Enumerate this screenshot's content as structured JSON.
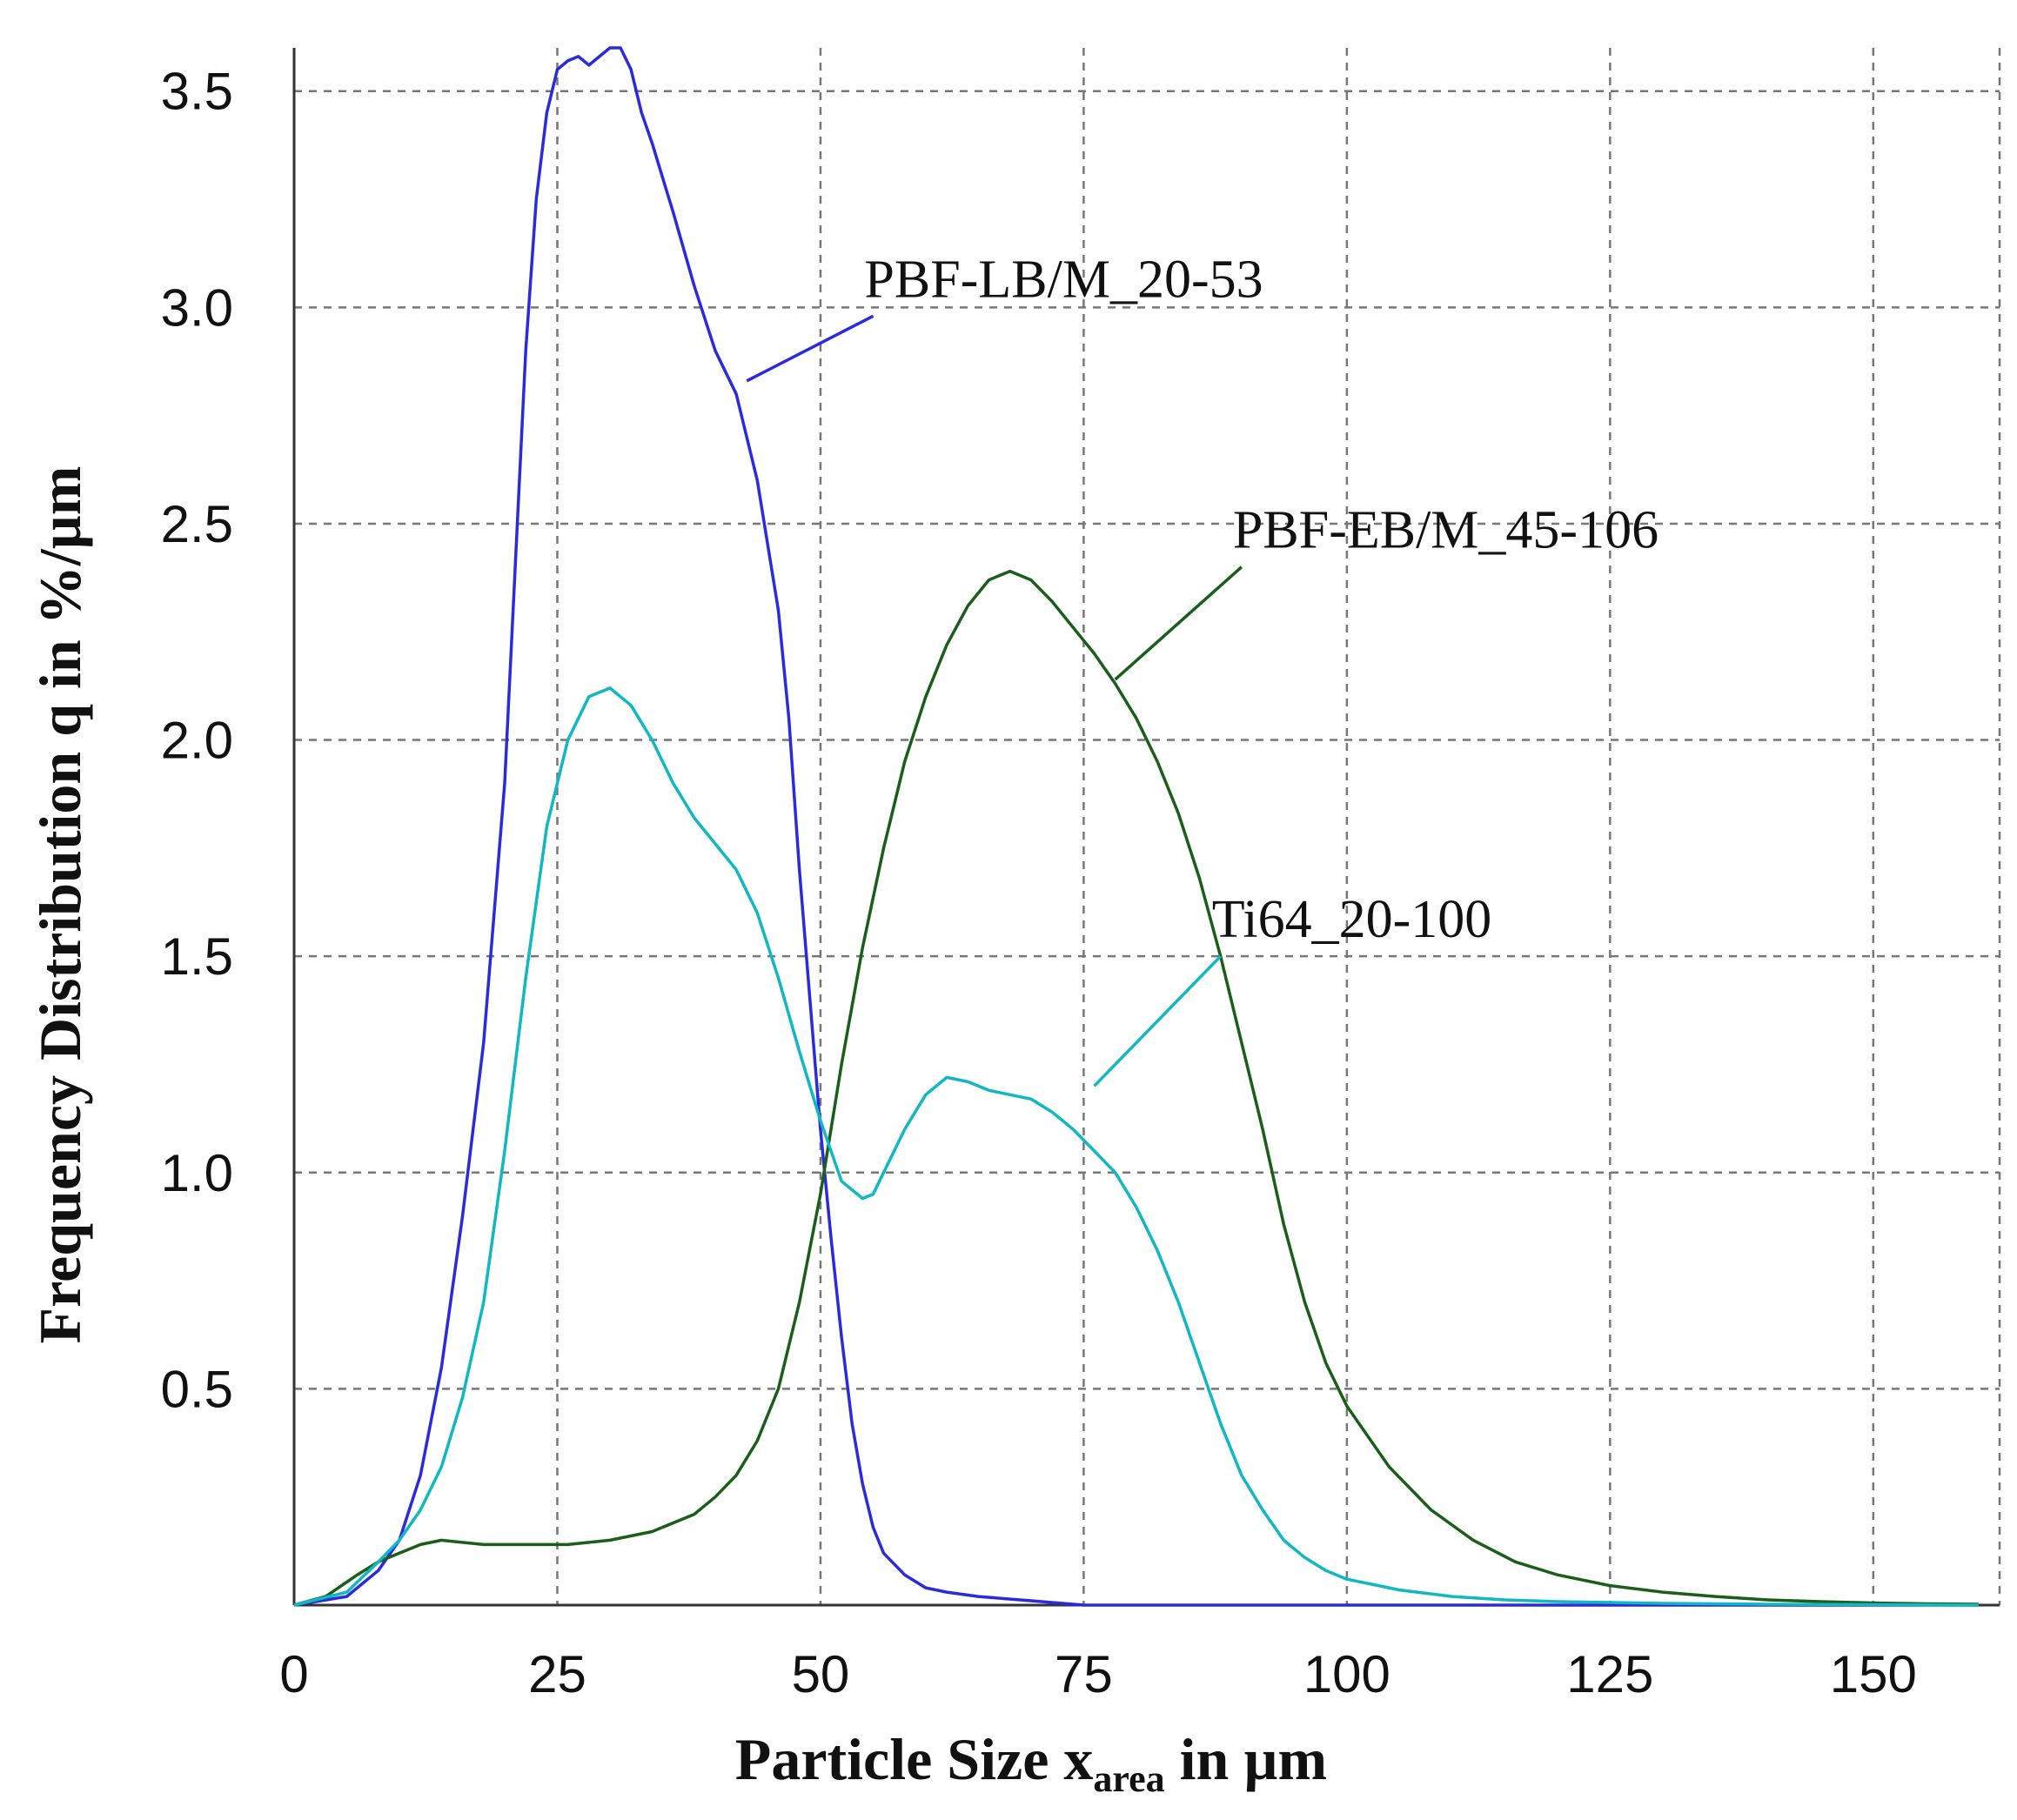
{
  "chart_data": {
    "type": "line",
    "xlabel": "Particle Size x",
    "xlabel_subscript": "area",
    "xlabel_suffix": " in µm",
    "ylabel": "Frequency Distribution q in %/µm",
    "xlim": [
      0,
      162
    ],
    "ylim": [
      0,
      3.6
    ],
    "x_ticks": [
      "0",
      "25",
      "50",
      "75",
      "100",
      "125",
      "150"
    ],
    "y_ticks": [
      "0.5",
      "1.0",
      "1.5",
      "2.0",
      "2.5",
      "3.0",
      "3.5"
    ],
    "grid": true,
    "legend": "none",
    "series": [
      {
        "name": "PBF-LB/M_20-53",
        "color": "#2b2bdc",
        "label_anchor": [
          43,
          2.83
        ],
        "label_pos": [
          55,
          2.98
        ],
        "x": [
          0,
          5,
          8,
          10,
          12,
          14,
          16,
          18,
          20,
          21,
          22,
          23,
          24,
          25,
          26,
          27,
          28,
          29,
          30,
          31,
          32,
          33,
          34,
          35,
          36,
          38,
          40,
          42,
          44,
          46,
          47,
          48,
          49,
          50,
          51,
          52,
          53,
          54,
          55,
          56,
          58,
          60,
          62,
          65,
          70,
          75,
          80,
          160
        ],
        "y": [
          0,
          0.02,
          0.08,
          0.15,
          0.3,
          0.55,
          0.9,
          1.3,
          1.9,
          2.4,
          2.9,
          3.25,
          3.45,
          3.55,
          3.57,
          3.58,
          3.56,
          3.58,
          3.6,
          3.6,
          3.55,
          3.45,
          3.38,
          3.3,
          3.22,
          3.05,
          2.9,
          2.8,
          2.6,
          2.3,
          2.05,
          1.7,
          1.4,
          1.1,
          0.85,
          0.62,
          0.42,
          0.28,
          0.18,
          0.12,
          0.07,
          0.04,
          0.03,
          0.02,
          0.01,
          0.0,
          0.0,
          0.0
        ]
      },
      {
        "name": "PBF-EB/M_45-106",
        "color": "#1a5e1a",
        "label_anchor": [
          78,
          2.14
        ],
        "label_pos": [
          90,
          2.4
        ],
        "x": [
          0,
          3,
          6,
          8,
          10,
          12,
          14,
          18,
          22,
          26,
          30,
          34,
          38,
          40,
          42,
          44,
          46,
          48,
          50,
          52,
          54,
          56,
          58,
          60,
          62,
          64,
          66,
          68,
          70,
          72,
          74,
          76,
          78,
          80,
          82,
          84,
          86,
          88,
          90,
          92,
          94,
          96,
          98,
          100,
          104,
          108,
          112,
          116,
          120,
          125,
          130,
          135,
          140,
          145,
          150,
          155,
          160
        ],
        "y": [
          0,
          0.02,
          0.07,
          0.1,
          0.12,
          0.14,
          0.15,
          0.14,
          0.14,
          0.14,
          0.15,
          0.17,
          0.21,
          0.25,
          0.3,
          0.38,
          0.5,
          0.7,
          0.95,
          1.25,
          1.52,
          1.75,
          1.95,
          2.1,
          2.22,
          2.31,
          2.37,
          2.39,
          2.37,
          2.32,
          2.26,
          2.2,
          2.13,
          2.05,
          1.95,
          1.83,
          1.68,
          1.5,
          1.3,
          1.1,
          0.88,
          0.7,
          0.56,
          0.46,
          0.32,
          0.22,
          0.15,
          0.1,
          0.07,
          0.045,
          0.03,
          0.02,
          0.012,
          0.008,
          0.005,
          0.003,
          0.002
        ]
      },
      {
        "name": "Ti64_20-100",
        "color": "#10b8c2",
        "label_anchor": [
          76,
          1.2
        ],
        "label_pos": [
          88,
          1.5
        ],
        "x": [
          0,
          5,
          8,
          10,
          12,
          14,
          16,
          18,
          20,
          22,
          24,
          26,
          28,
          30,
          32,
          34,
          36,
          38,
          40,
          42,
          44,
          46,
          48,
          50,
          52,
          54,
          55,
          56,
          58,
          60,
          62,
          64,
          66,
          68,
          70,
          72,
          74,
          76,
          78,
          80,
          82,
          84,
          86,
          88,
          90,
          92,
          94,
          96,
          98,
          100,
          105,
          110,
          115,
          120,
          130,
          140,
          160
        ],
        "y": [
          0,
          0.03,
          0.1,
          0.15,
          0.22,
          0.32,
          0.48,
          0.7,
          1.05,
          1.45,
          1.8,
          2.0,
          2.1,
          2.12,
          2.08,
          2.0,
          1.9,
          1.82,
          1.76,
          1.7,
          1.6,
          1.45,
          1.28,
          1.12,
          0.98,
          0.94,
          0.95,
          1.0,
          1.1,
          1.18,
          1.22,
          1.21,
          1.19,
          1.18,
          1.17,
          1.14,
          1.1,
          1.05,
          1.0,
          0.92,
          0.82,
          0.7,
          0.56,
          0.42,
          0.3,
          0.22,
          0.15,
          0.11,
          0.08,
          0.06,
          0.035,
          0.02,
          0.012,
          0.008,
          0.004,
          0.002,
          0.0
        ]
      }
    ]
  }
}
